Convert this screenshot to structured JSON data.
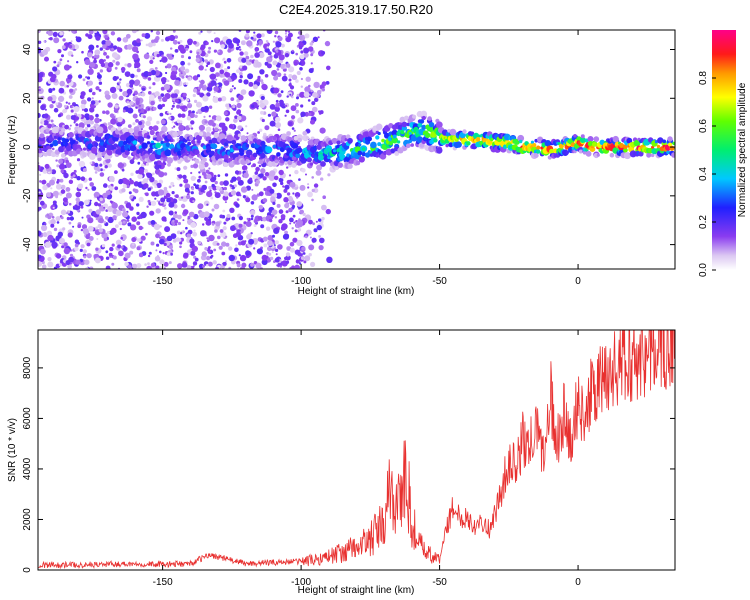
{
  "figure": {
    "title": "C2E4.2025.319.17.50.R20"
  },
  "chart_data": [
    {
      "type": "heatmap",
      "title": "C2E4.2025.319.17.50.R20",
      "xlabel": "Height of straight line (km)",
      "ylabel": "Frequency (Hz)",
      "xlim": [
        -195,
        35
      ],
      "ylim": [
        -50,
        48
      ],
      "xticks": [
        -150,
        -100,
        -50,
        0
      ],
      "yticks": [
        -40,
        -20,
        0,
        20,
        40
      ],
      "colorbar": {
        "label": "Normalized spectral amplitude",
        "range": [
          0,
          1
        ],
        "ticks": [
          "0.0",
          "0.2",
          "0.4",
          "0.6",
          "0.8"
        ],
        "colormap": "rainbow (white-purple-blue-cyan-green-yellow-red-magenta)"
      },
      "ridge": {
        "x": [
          -195,
          -175,
          -160,
          -150,
          -140,
          -130,
          -120,
          -110,
          -100,
          -90,
          -80,
          -70,
          -60,
          -55,
          -50,
          -45,
          -40,
          -35,
          -30,
          -25,
          -20,
          -15,
          -10,
          -5,
          0,
          5,
          10,
          20,
          35
        ],
        "y": [
          2,
          2,
          1,
          0,
          0,
          -1,
          -1,
          -1,
          -2,
          -3,
          -1,
          2,
          6,
          7,
          4,
          3,
          3,
          3,
          2,
          2,
          0,
          0,
          -1,
          0,
          2,
          0,
          0,
          0,
          0
        ],
        "peak_amplitude": [
          0.25,
          0.3,
          0.35,
          0.4,
          0.3,
          0.35,
          0.3,
          0.35,
          0.35,
          0.45,
          0.55,
          0.6,
          0.55,
          0.6,
          0.7,
          0.75,
          0.85,
          0.85,
          0.8,
          0.85,
          0.9,
          0.85,
          0.9,
          0.85,
          0.9,
          0.9,
          0.9,
          0.95,
          0.95
        ]
      }
    },
    {
      "type": "line",
      "xlabel": "Height of straight line (km)",
      "ylabel": "SNR (10 * v/v)",
      "xlim": [
        -195,
        35
      ],
      "ylim": [
        0,
        9500
      ],
      "xticks": [
        -150,
        -100,
        -50,
        0
      ],
      "yticks": [
        0,
        2000,
        4000,
        6000,
        8000
      ],
      "color": "#e8302f",
      "series": [
        {
          "x": [
            -195,
            -180,
            -160,
            -150,
            -140,
            -133,
            -120,
            -110,
            -100,
            -95,
            -90,
            -85,
            -80,
            -75,
            -70,
            -68,
            -65,
            -62,
            -60,
            -58,
            -55,
            -52,
            -50,
            -48,
            -45,
            -42,
            -40,
            -38,
            -35,
            -32,
            -30,
            -28,
            -25,
            -22,
            -20,
            -18,
            -15,
            -12,
            -10,
            -8,
            -5,
            -3,
            0,
            3,
            5,
            8,
            10,
            15,
            20,
            25,
            30,
            35
          ],
          "y": [
            200,
            200,
            250,
            220,
            250,
            600,
            250,
            300,
            350,
            400,
            550,
            700,
            900,
            1200,
            1800,
            3000,
            2800,
            3500,
            2000,
            1100,
            700,
            500,
            400,
            1500,
            2500,
            2000,
            2200,
            1700,
            2000,
            1600,
            2200,
            3000,
            4300,
            4100,
            5200,
            4800,
            5500,
            4500,
            7000,
            5000,
            6200,
            5200,
            6500,
            6300,
            7000,
            7300,
            7800,
            8000,
            8400,
            8700,
            9000,
            9200
          ]
        }
      ]
    }
  ]
}
